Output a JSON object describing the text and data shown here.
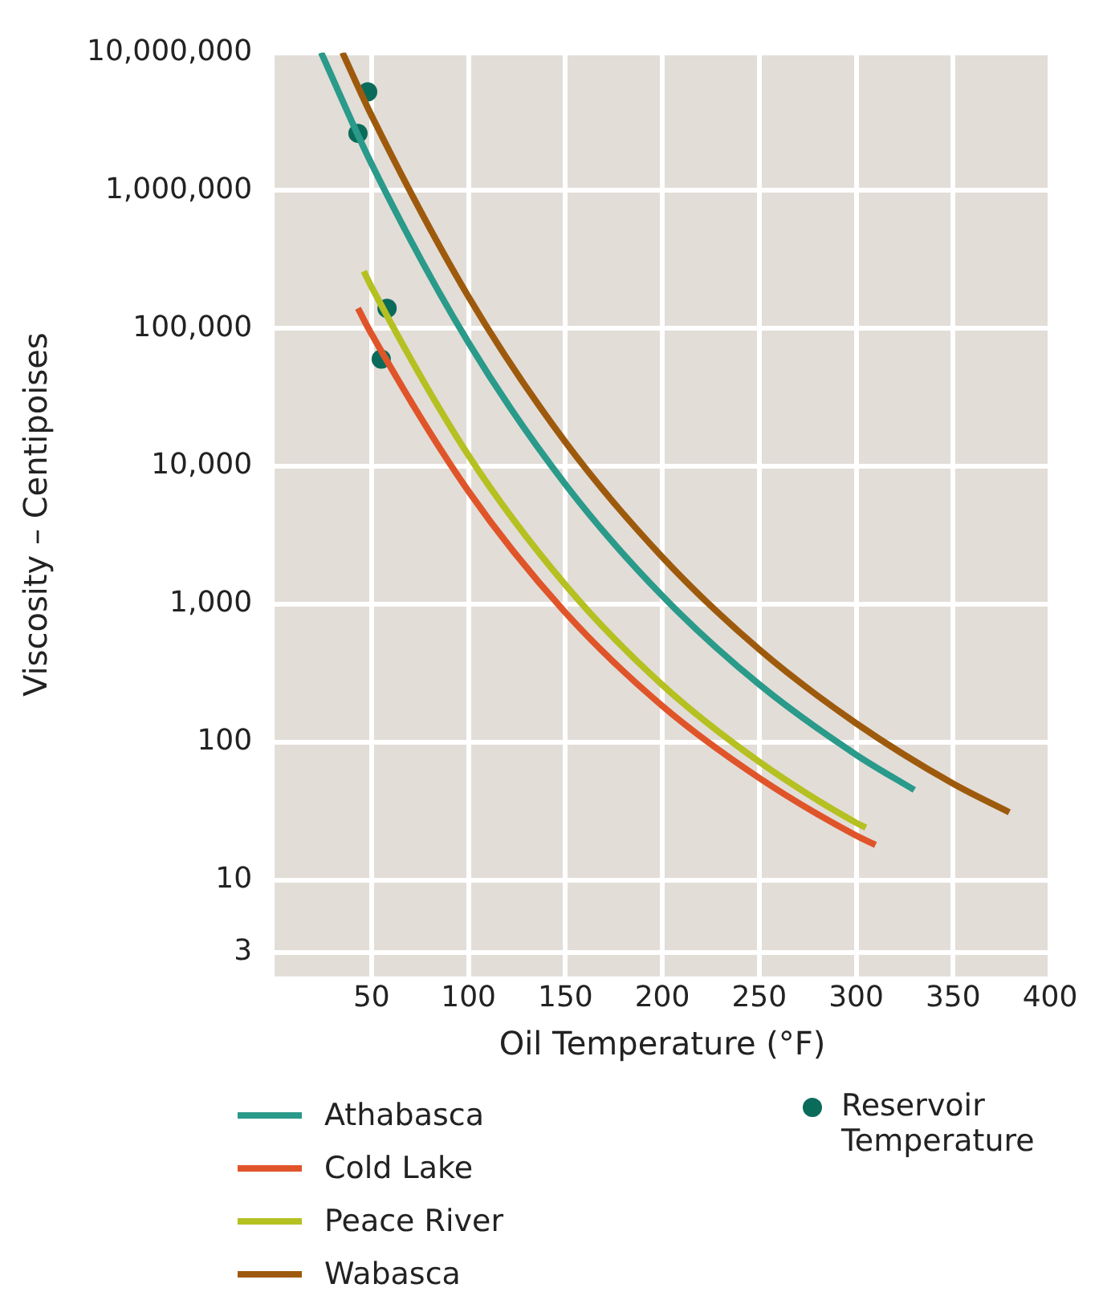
{
  "chart_data": {
    "type": "line",
    "xlabel": "Oil Temperature (°F)",
    "ylabel": "Viscosity – Centipoises",
    "xlim": [
      0,
      400
    ],
    "xticks": [
      50,
      100,
      150,
      200,
      250,
      300,
      350,
      400
    ],
    "ylim": [
      2,
      10000000
    ],
    "yticks": [
      3,
      10,
      100,
      {
        "value": 1000,
        "label": "1,000"
      },
      {
        "value": 10000,
        "label": "10,000"
      },
      {
        "value": 100000,
        "label": "100,000"
      },
      {
        "value": 1000000,
        "label": "1,000,000"
      },
      {
        "value": 10000000,
        "label": "10,000,000"
      }
    ],
    "log": "y",
    "grid": true,
    "legend": "bottom",
    "line_style": "solid",
    "series": [
      {
        "name": "Athabasca",
        "color": "#2a9a8a",
        "x": [
          24,
          50,
          100,
          150,
          200,
          250,
          300,
          330
        ],
        "values": [
          10000000,
          1560000,
          79000,
          7400,
          1150,
          262,
          81,
          45
        ]
      },
      {
        "name": "Cold Lake",
        "color": "#e0542a",
        "x": [
          43,
          50,
          100,
          150,
          200,
          250,
          300,
          310
        ],
        "values": [
          140000,
          91000,
          6600,
          870,
          183,
          55,
          21,
          18
        ]
      },
      {
        "name": "Peace River",
        "color": "#b5c021",
        "x": [
          46,
          50,
          100,
          150,
          200,
          250,
          300,
          305
        ],
        "values": [
          260000,
          200000,
          12000,
          1380,
          260,
          72,
          26,
          24
        ]
      },
      {
        "name": "Wabasca",
        "color": "#9e5a0c",
        "x": [
          35,
          50,
          100,
          150,
          200,
          250,
          300,
          350,
          379
        ],
        "values": [
          10000000,
          3500000,
          170000,
          15000,
          2200,
          470,
          137,
          50,
          31
        ]
      },
      {
        "name": "Reservoir Temperature",
        "type": "scatter",
        "marker": "circle",
        "color": "#0a6b5b",
        "x": [
          48,
          43,
          58,
          55
        ],
        "values": [
          5200000,
          2600000,
          140000,
          60000
        ]
      }
    ]
  }
}
